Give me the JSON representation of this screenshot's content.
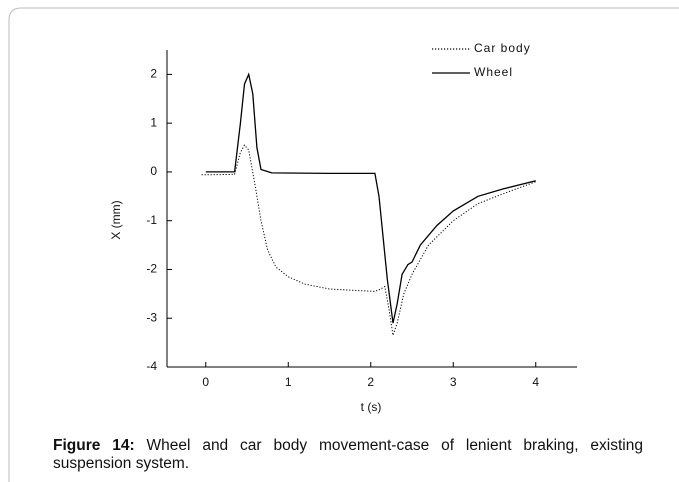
{
  "chart_data": {
    "type": "line",
    "xlabel": "t (s)",
    "ylabel": "X (mm)",
    "xlim": [
      -0.47,
      4.5
    ],
    "xticks": [
      0,
      1,
      2,
      3,
      4
    ],
    "ylim": [
      -4,
      2.5
    ],
    "yticks": [
      -4,
      -3,
      -2,
      -1,
      0,
      1,
      2
    ],
    "legend": "upper right",
    "series": [
      {
        "name": "Car body",
        "color": "#000000",
        "dash": "dotted",
        "x": [
          -0.05,
          0.35,
          0.42,
          0.47,
          0.52,
          0.6,
          0.67,
          0.75,
          0.85,
          1.0,
          1.2,
          1.5,
          1.8,
          2.05,
          2.12,
          2.17,
          2.22,
          2.27,
          2.32,
          2.4,
          2.5,
          2.7,
          3.0,
          3.3,
          3.6,
          4.0
        ],
        "values": [
          -0.06,
          -0.05,
          0.4,
          0.55,
          0.45,
          -0.3,
          -1.0,
          -1.6,
          -1.95,
          -2.15,
          -2.3,
          -2.4,
          -2.43,
          -2.45,
          -2.4,
          -2.35,
          -2.8,
          -3.35,
          -3.1,
          -2.5,
          -2.1,
          -1.5,
          -1.0,
          -0.65,
          -0.45,
          -0.2
        ]
      },
      {
        "name": "Wheel",
        "color": "#000000",
        "dash": "solid",
        "x": [
          0.0,
          0.35,
          0.42,
          0.47,
          0.52,
          0.57,
          0.62,
          0.67,
          0.8,
          1.5,
          2.05,
          2.1,
          2.2,
          2.27,
          2.32,
          2.38,
          2.45,
          2.5,
          2.6,
          2.8,
          3.0,
          3.3,
          3.6,
          4.0
        ],
        "values": [
          0.0,
          0.0,
          1.0,
          1.8,
          2.0,
          1.6,
          0.5,
          0.05,
          -0.02,
          -0.03,
          -0.03,
          -0.5,
          -2.2,
          -3.1,
          -2.7,
          -2.1,
          -1.9,
          -1.85,
          -1.5,
          -1.1,
          -0.8,
          -0.5,
          -0.35,
          -0.18
        ]
      }
    ]
  },
  "caption": {
    "label": "Figure 14:",
    "text": " Wheel and car body movement-case of lenient braking, existing suspension system."
  }
}
